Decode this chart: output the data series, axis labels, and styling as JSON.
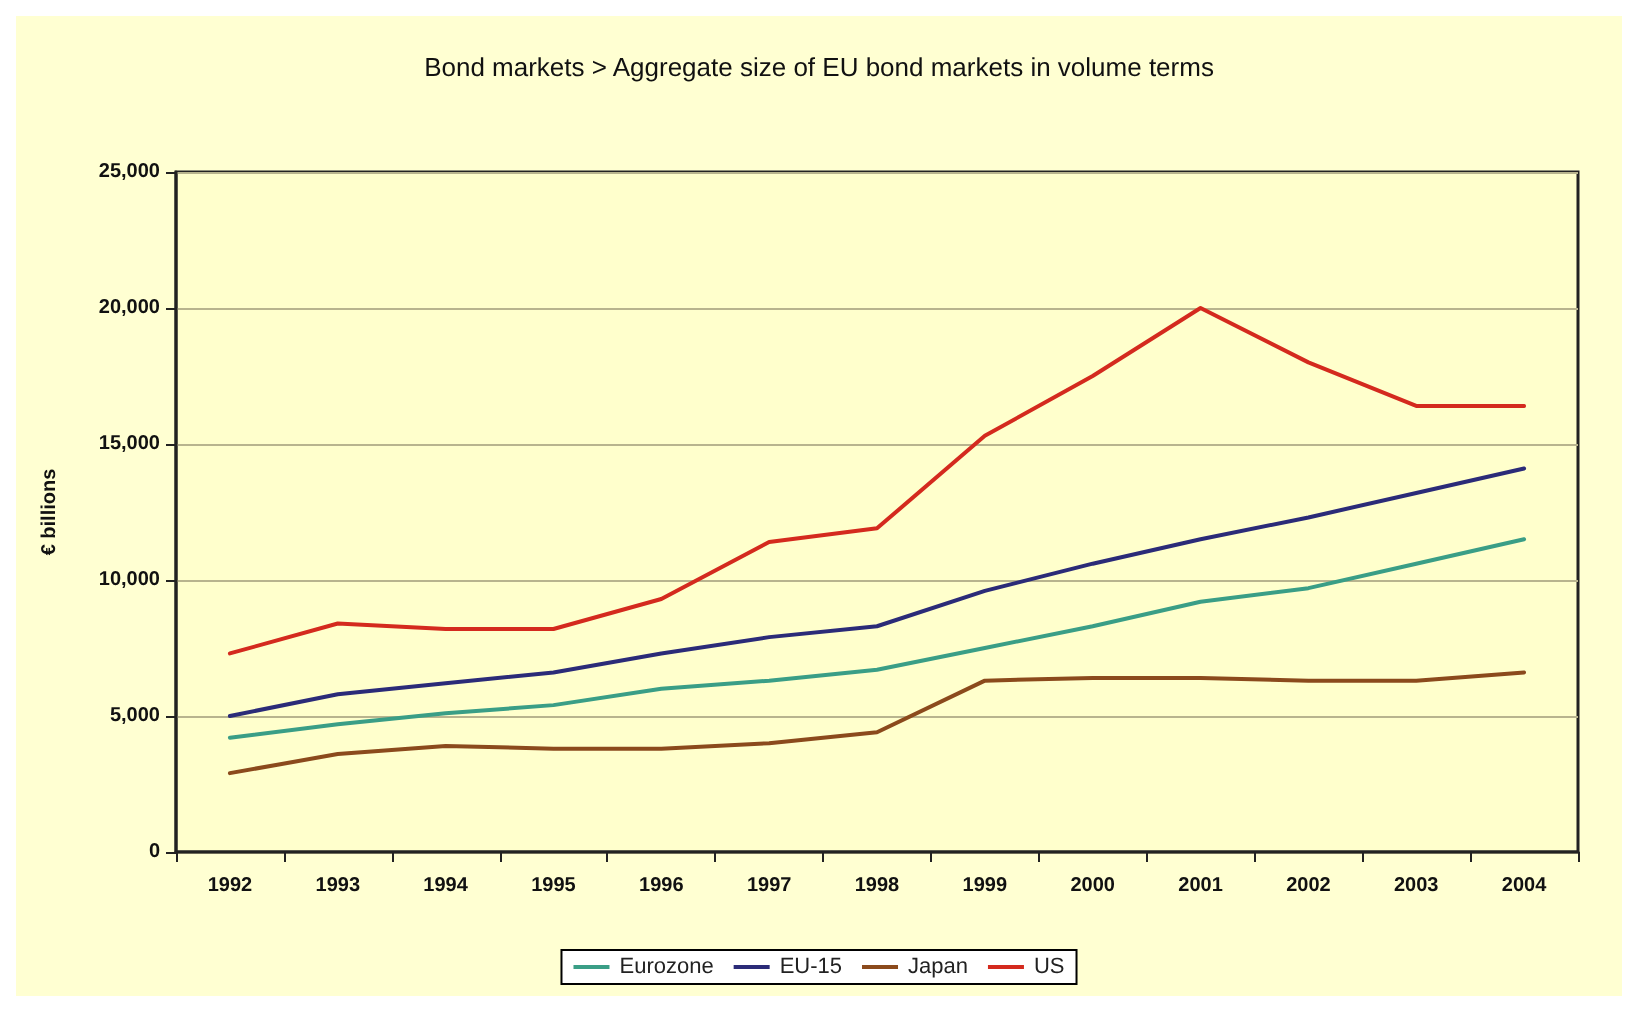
{
  "chart_data": {
    "type": "line",
    "title": "Bond markets > Aggregate size of EU bond markets in volume terms",
    "ylabel": "€ billions",
    "categories": [
      "1992",
      "1993",
      "1994",
      "1995",
      "1996",
      "1997",
      "1998",
      "1999",
      "2000",
      "2001",
      "2002",
      "2003",
      "2004"
    ],
    "series": [
      {
        "name": "Eurozone",
        "color": "#3a9e86",
        "values": [
          4200,
          4700,
          5100,
          5400,
          6000,
          6300,
          6700,
          7500,
          8300,
          9200,
          9700,
          10600,
          11500
        ]
      },
      {
        "name": "EU-15",
        "color": "#2b2b78",
        "values": [
          5000,
          5800,
          6200,
          6600,
          7300,
          7900,
          8300,
          9600,
          10600,
          11500,
          12300,
          13200,
          14100
        ]
      },
      {
        "name": "Japan",
        "color": "#8b4a1c",
        "values": [
          2900,
          3600,
          3900,
          3800,
          3800,
          4000,
          4400,
          6300,
          6400,
          6400,
          6300,
          6300,
          6600
        ]
      },
      {
        "name": "US",
        "color": "#d42a1e",
        "values": [
          7300,
          8400,
          8200,
          8200,
          9300,
          11400,
          11900,
          15300,
          17500,
          20000,
          18000,
          16400,
          16400
        ]
      }
    ],
    "ylim": [
      0,
      25000
    ],
    "yticks": [
      0,
      {
        "value": 5000,
        "label": "5,000"
      },
      {
        "value": 10000,
        "label": "10,000"
      },
      {
        "value": 15000,
        "label": "15,000"
      },
      {
        "value": 20000,
        "label": "20,000"
      },
      {
        "value": 25000,
        "label": "25,000"
      }
    ],
    "grid": "y",
    "legend": "bottom",
    "marker": "none",
    "line_style": "solid"
  }
}
